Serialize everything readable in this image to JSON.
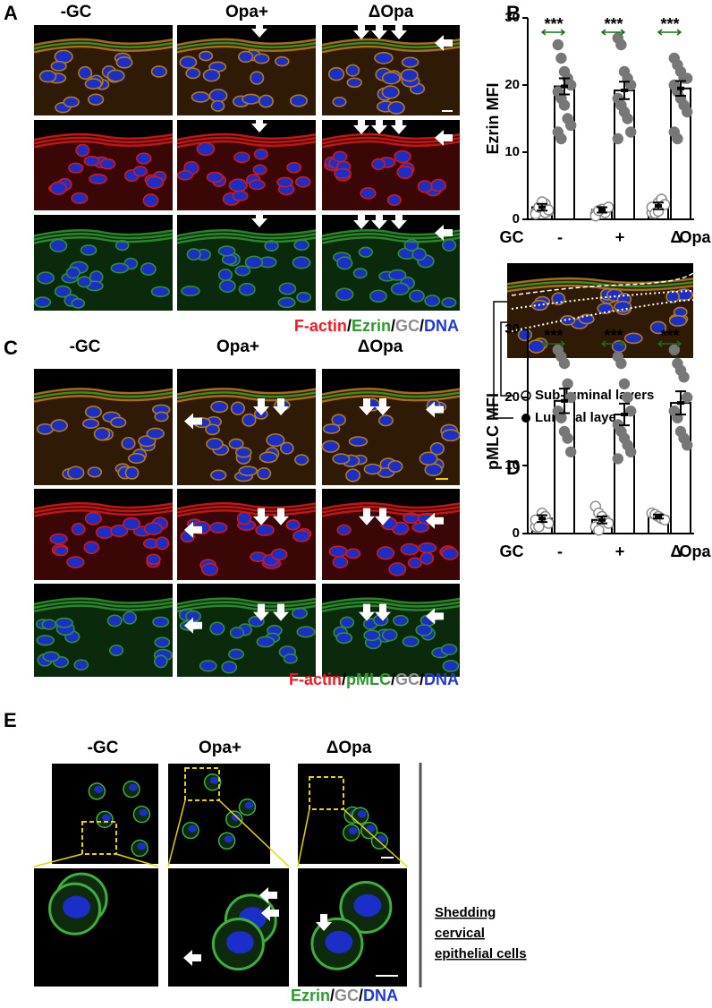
{
  "panels": {
    "A": {
      "label": "A",
      "columns": [
        "-GC",
        "Opa+",
        "ΔOpa"
      ],
      "caption": [
        {
          "text": "F-actin",
          "color": "#ee1c25"
        },
        {
          "text": "/",
          "color": "#000000"
        },
        {
          "text": "Ezrin",
          "color": "#2a9a2a"
        },
        {
          "text": "/",
          "color": "#000000"
        },
        {
          "text": "GC",
          "color": "#8c8c8c"
        },
        {
          "text": "/",
          "color": "#000000"
        },
        {
          "text": "DNA",
          "color": "#1f3ad8"
        }
      ]
    },
    "B": {
      "label": "B"
    },
    "C": {
      "label": "C",
      "columns": [
        "-GC",
        "Opa+",
        "ΔOpa"
      ],
      "caption": [
        {
          "text": "F-actin",
          "color": "#ee1c25"
        },
        {
          "text": "/",
          "color": "#000000"
        },
        {
          "text": "pMLC",
          "color": "#2a9a2a"
        },
        {
          "text": "/",
          "color": "#000000"
        },
        {
          "text": "GC",
          "color": "#8c8c8c"
        },
        {
          "text": "/",
          "color": "#000000"
        },
        {
          "text": "DNA",
          "color": "#1f3ad8"
        }
      ]
    },
    "D": {
      "label": "D"
    },
    "E": {
      "label": "E",
      "columns": [
        "-GC",
        "Opa+",
        "ΔOpa"
      ],
      "side_label": [
        "Shedding",
        "cervical",
        "epithelial cells"
      ],
      "caption": [
        {
          "text": "Ezrin",
          "color": "#2a9a2a"
        },
        {
          "text": "/",
          "color": "#000000"
        },
        {
          "text": "GC",
          "color": "#8c8c8c"
        },
        {
          "text": "/",
          "color": "#000000"
        },
        {
          "text": "DNA",
          "color": "#1f3ad8"
        }
      ]
    }
  },
  "chart_data": [
    {
      "type": "bar",
      "ylabel": "Ezrin MFI",
      "x_label_left": "GC",
      "x_label_right": "Opa",
      "categories": [
        "-",
        "+",
        "Δ"
      ],
      "ylim": [
        0,
        30
      ],
      "yticks": [
        0,
        10,
        20,
        30
      ],
      "significance": [
        "***",
        "***",
        "***"
      ],
      "series": [
        {
          "name": "Sub-luminal layers",
          "color": "#ffffff",
          "values": [
            1.8,
            1.4,
            2.0
          ],
          "errors": [
            0.5,
            0.4,
            0.5
          ],
          "points": [
            [
              1,
              1.5,
              2,
              2.3,
              1.2,
              0.8,
              1.8,
              2.6,
              1.0,
              1.4
            ],
            [
              0.8,
              1.2,
              1.5,
              1.0,
              1.8,
              0.5,
              1.3
            ],
            [
              1,
              1.5,
              2.5,
              3,
              2.2,
              1.8,
              0.9,
              1.2
            ]
          ]
        },
        {
          "name": "Luminal layers",
          "color": "#777777",
          "values": [
            19.8,
            19.2,
            19.5
          ],
          "errors": [
            1.2,
            1.3,
            1.1
          ],
          "points": [
            [
              26,
              24,
              22,
              21,
              20,
              19,
              18,
              17,
              15,
              14,
              13,
              12
            ],
            [
              27,
              26,
              22,
              21,
              20,
              18,
              17,
              16,
              15,
              13,
              12
            ],
            [
              24,
              23,
              22,
              21,
              21,
              20,
              19,
              18,
              17,
              16,
              13,
              12
            ]
          ]
        }
      ]
    },
    {
      "type": "bar",
      "ylabel": "pMLC MFI",
      "x_label_left": "GC",
      "x_label_right": "Opa",
      "categories": [
        "-",
        "+",
        "Δ"
      ],
      "ylim": [
        0,
        30
      ],
      "yticks": [
        0,
        10,
        20,
        30
      ],
      "significance": [
        "***",
        "***",
        "***"
      ],
      "series": [
        {
          "name": "Sub-luminal layers",
          "color": "#ffffff",
          "values": [
            2.2,
            2.0,
            2.5
          ],
          "errors": [
            0.5,
            0.5,
            0.3
          ],
          "points": [
            [
              1,
              2,
              3,
              2.5,
              1.5,
              2,
              1
            ],
            [
              4,
              3,
              2.5,
              2,
              1.5,
              1,
              0.5
            ],
            [
              3,
              2.8,
              2.5,
              2.2,
              2
            ]
          ]
        },
        {
          "name": "Luminal layers",
          "color": "#777777",
          "values": [
            19.5,
            17.5,
            19.2
          ],
          "errors": [
            1.8,
            1.6,
            1.7
          ],
          "points": [
            [
              27,
              26,
              25,
              22,
              20,
              18,
              17,
              15,
              14,
              12
            ],
            [
              26,
              25,
              22,
              20,
              18,
              16,
              15,
              14,
              13,
              12,
              11
            ],
            [
              27,
              25,
              24,
              23,
              20,
              18,
              17,
              15,
              14,
              13
            ]
          ]
        }
      ]
    }
  ]
}
